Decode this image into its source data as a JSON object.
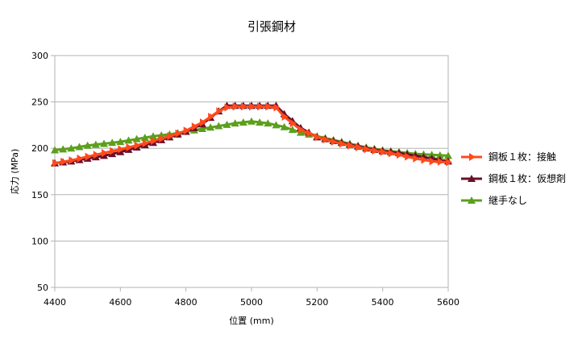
{
  "chart_data": {
    "type": "line",
    "title": "引張鋼材",
    "xlabel": "位置 (mm)",
    "ylabel": "応力 (MPa)",
    "xlim": [
      4400,
      5600
    ],
    "ylim": [
      50,
      300
    ],
    "x_ticks": [
      "4400",
      "4600",
      "4800",
      "5000",
      "5200",
      "5400",
      "5600"
    ],
    "y_ticks": [
      "50",
      "100",
      "150",
      "200",
      "250",
      "300"
    ],
    "grid": "horizontal",
    "legend_position": "right",
    "series": [
      {
        "name": "鋼板１枚：仮想剤",
        "color": "#6b0f2a",
        "marker": "triangle",
        "x": [
          4400,
          4450,
          4500,
          4550,
          4600,
          4650,
          4700,
          4750,
          4800,
          4850,
          4900,
          4925,
          4950,
          5000,
          5050,
          5075,
          5100,
          5150,
          5200,
          5250,
          5300,
          5350,
          5400,
          5450,
          5500,
          5550,
          5600
        ],
        "y": [
          184,
          186,
          189,
          192,
          196,
          201,
          206,
          212,
          218,
          226,
          240,
          246,
          246,
          246,
          246,
          246,
          237,
          222,
          212,
          208,
          204,
          200,
          197,
          195,
          192,
          189,
          186
        ]
      },
      {
        "name": "鋼板１枚：接触",
        "color": "#ff4a1c",
        "marker": "arrow",
        "x": [
          4400,
          4450,
          4500,
          4550,
          4600,
          4650,
          4700,
          4750,
          4800,
          4850,
          4900,
          4925,
          4950,
          5000,
          5050,
          5075,
          5100,
          5150,
          5200,
          5250,
          5300,
          5350,
          5400,
          5450,
          5500,
          5550,
          5600
        ],
        "y": [
          184,
          187,
          191,
          195,
          199,
          203,
          208,
          213,
          219,
          228,
          240,
          244,
          245,
          245,
          245,
          244,
          234,
          220,
          212,
          207,
          203,
          199,
          196,
          193,
          189,
          186,
          185
        ]
      },
      {
        "name": "継手なし",
        "color": "#5c9f1c",
        "marker": "triangle",
        "x": [
          4400,
          4450,
          4500,
          4550,
          4600,
          4650,
          4700,
          4750,
          4800,
          4850,
          4900,
          4950,
          5000,
          5050,
          5100,
          5150,
          5200,
          5250,
          5300,
          5350,
          5400,
          5450,
          5500,
          5550,
          5600
        ],
        "y": [
          198,
          200,
          203,
          205,
          207,
          210,
          213,
          215,
          218,
          221,
          224,
          227,
          229,
          227,
          223,
          217,
          213,
          209,
          205,
          201,
          198,
          196,
          194,
          193,
          192
        ]
      }
    ]
  }
}
